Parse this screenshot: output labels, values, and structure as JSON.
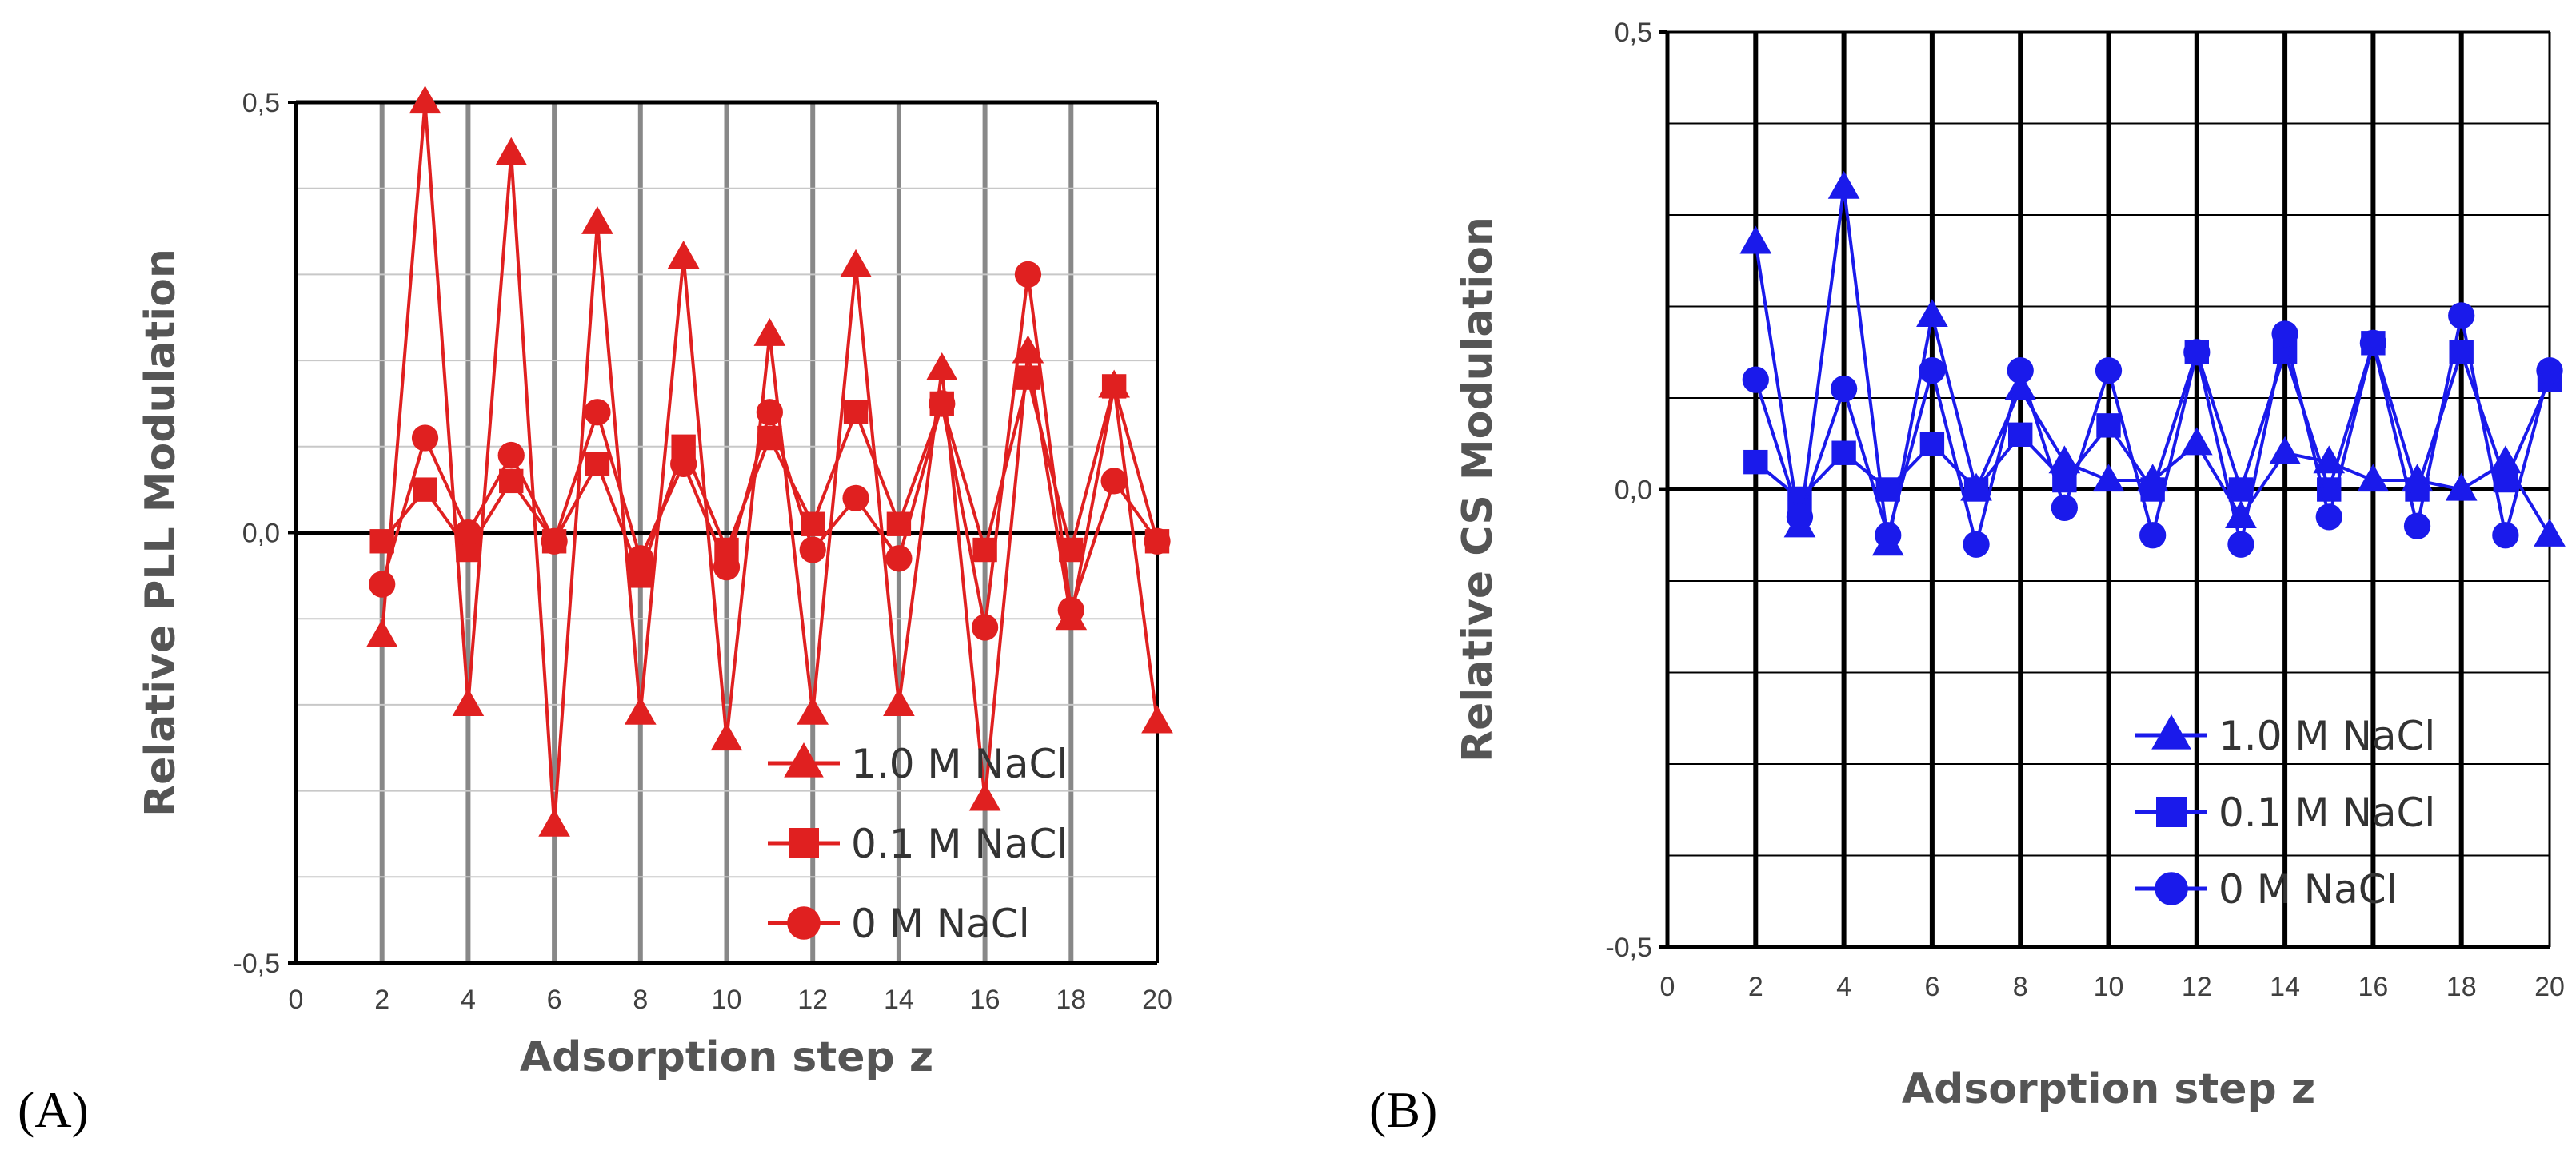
{
  "chart_data": [
    {
      "id": "A",
      "type": "line",
      "panel_label": "(A)",
      "xlabel": "Adsorption step z",
      "ylabel": "Relative PLL Modulation",
      "xlim": [
        0,
        20
      ],
      "ylim": [
        -0.5,
        0.5
      ],
      "x_ticks": [
        "0",
        "2",
        "4",
        "6",
        "8",
        "10",
        "12",
        "14",
        "16",
        "18",
        "20"
      ],
      "y_ticks": [
        "-0,5",
        "0,0",
        "0,5"
      ],
      "color": "#e02020",
      "legend_position": "bottom-right",
      "x": [
        2,
        3,
        4,
        5,
        6,
        7,
        8,
        9,
        10,
        11,
        12,
        13,
        14,
        15,
        16,
        17,
        18,
        19,
        20
      ],
      "series": [
        {
          "name": "1.0 M NaCl",
          "marker": "triangle",
          "values": [
            -0.12,
            0.5,
            -0.2,
            0.44,
            -0.34,
            0.36,
            -0.21,
            0.32,
            -0.24,
            0.23,
            -0.21,
            0.31,
            -0.2,
            0.19,
            -0.31,
            0.21,
            -0.1,
            0.17,
            -0.22
          ]
        },
        {
          "name": "0.1 M NaCl",
          "marker": "square",
          "values": [
            -0.01,
            0.05,
            -0.02,
            0.06,
            -0.01,
            0.08,
            -0.05,
            0.1,
            -0.02,
            0.11,
            0.01,
            0.14,
            0.01,
            0.15,
            -0.02,
            0.18,
            -0.02,
            0.17,
            -0.01
          ]
        },
        {
          "name": "0 M NaCl",
          "marker": "circle",
          "values": [
            -0.06,
            0.11,
            0.0,
            0.09,
            -0.01,
            0.14,
            -0.03,
            0.08,
            -0.04,
            0.14,
            -0.02,
            0.04,
            -0.03,
            0.15,
            -0.11,
            0.3,
            -0.09,
            0.06,
            -0.01
          ]
        }
      ]
    },
    {
      "id": "B",
      "type": "line",
      "panel_label": "(B)",
      "xlabel": "Adsorption step z",
      "ylabel": "Relative CS Modulation",
      "xlim": [
        0,
        20
      ],
      "ylim": [
        -0.5,
        0.5
      ],
      "x_ticks": [
        "0",
        "2",
        "4",
        "6",
        "8",
        "10",
        "12",
        "14",
        "16",
        "18",
        "20"
      ],
      "y_ticks": [
        "-0,5",
        "0,0",
        "0,5"
      ],
      "color": "#1a1aeb",
      "legend_position": "bottom-right",
      "x": [
        2,
        3,
        4,
        5,
        6,
        7,
        8,
        9,
        10,
        11,
        12,
        13,
        14,
        15,
        16,
        17,
        18,
        19,
        20
      ],
      "series": [
        {
          "name": "1.0 M NaCl",
          "marker": "triangle",
          "values": [
            0.27,
            -0.04,
            0.33,
            -0.06,
            0.19,
            0.0,
            0.11,
            0.03,
            0.01,
            0.01,
            0.05,
            -0.03,
            0.04,
            0.03,
            0.01,
            0.01,
            0.0,
            0.03,
            -0.05
          ]
        },
        {
          "name": "0.1 M NaCl",
          "marker": "square",
          "values": [
            0.03,
            -0.01,
            0.04,
            0.0,
            0.05,
            0.0,
            0.06,
            0.01,
            0.07,
            0.0,
            0.15,
            0.0,
            0.15,
            0.0,
            0.16,
            0.0,
            0.15,
            0.01,
            0.12
          ]
        },
        {
          "name": "0 M NaCl",
          "marker": "circle",
          "values": [
            0.12,
            -0.03,
            0.11,
            -0.05,
            0.13,
            -0.06,
            0.13,
            -0.02,
            0.13,
            -0.05,
            0.15,
            -0.06,
            0.17,
            -0.03,
            0.16,
            -0.04,
            0.19,
            -0.05,
            0.13
          ]
        }
      ]
    }
  ]
}
